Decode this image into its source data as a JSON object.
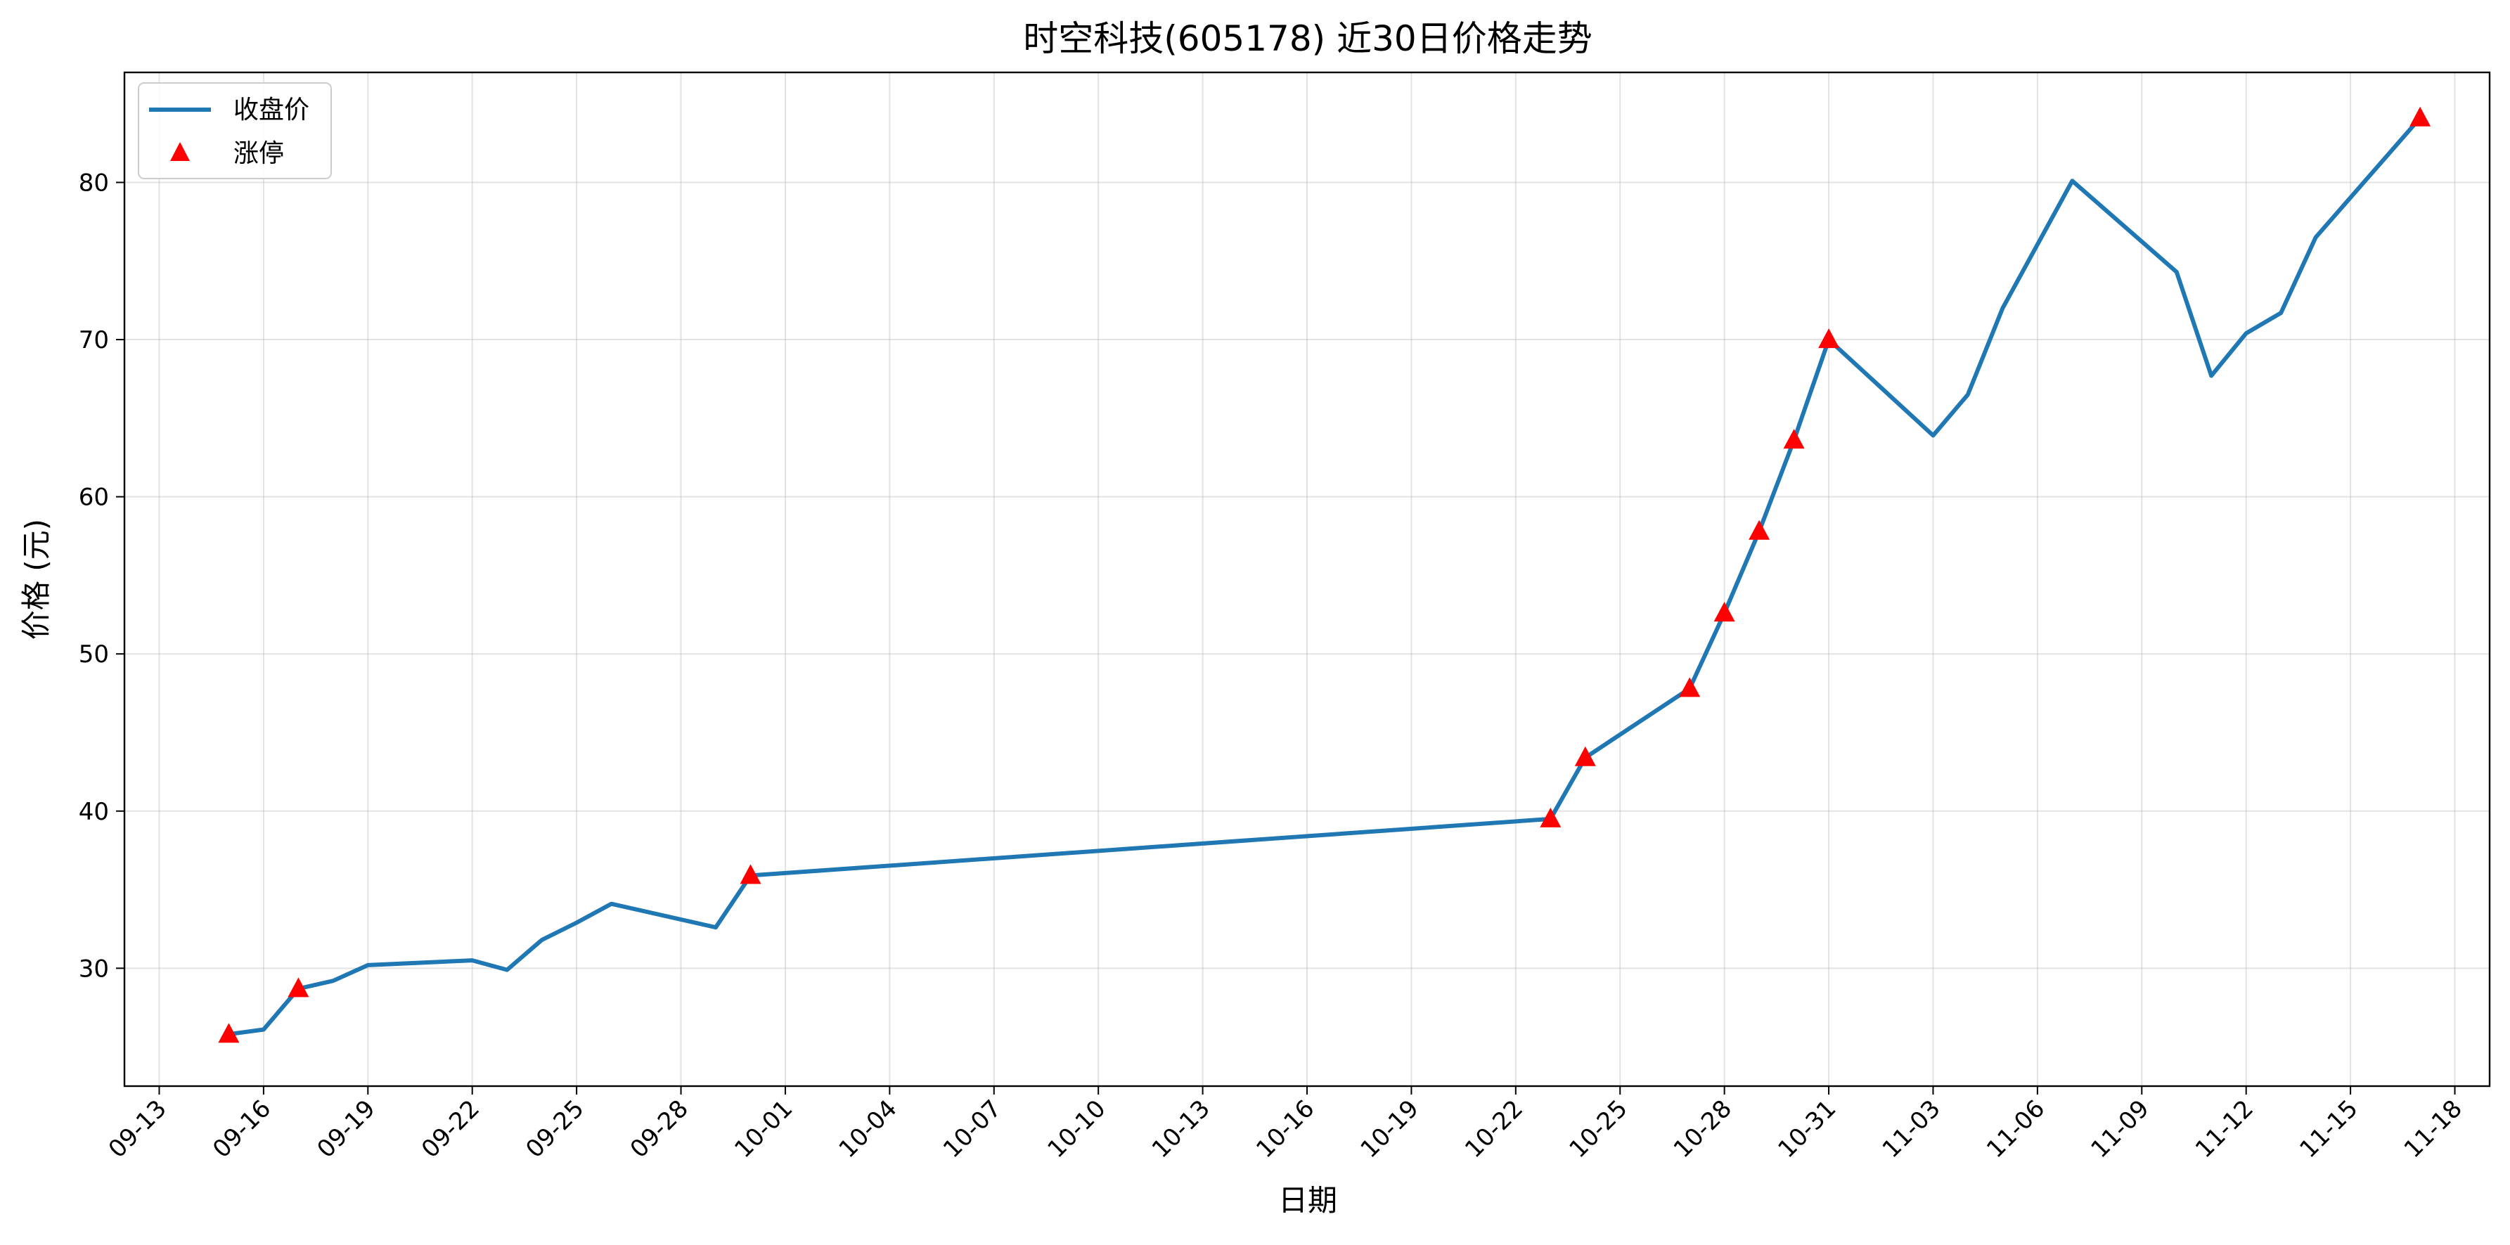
{
  "chart_data": {
    "type": "line",
    "title": "时空科技(605178) 近30日价格走势",
    "xlabel": "日期",
    "ylabel": "价格 (元)",
    "x_axis": {
      "type": "date",
      "range": [
        "2024-09-12",
        "2024-11-19"
      ],
      "ticks": [
        "2024-09-13",
        "2024-09-16",
        "2024-09-19",
        "2024-09-22",
        "2024-09-25",
        "2024-09-28",
        "2024-10-01",
        "2024-10-04",
        "2024-10-07",
        "2024-10-10",
        "2024-10-13",
        "2024-10-16",
        "2024-10-19",
        "2024-10-22",
        "2024-10-25",
        "2024-10-28",
        "2024-10-31",
        "2024-11-03",
        "2024-11-06",
        "2024-11-09",
        "2024-11-12",
        "2024-11-15",
        "2024-11-18"
      ],
      "tick_labels": [
        "09-13",
        "09-16",
        "09-19",
        "09-22",
        "09-25",
        "09-28",
        "10-01",
        "10-04",
        "10-07",
        "10-10",
        "10-13",
        "10-16",
        "10-19",
        "10-22",
        "10-25",
        "10-28",
        "10-31",
        "11-03",
        "11-06",
        "11-09",
        "11-12",
        "11-15",
        "11-18"
      ]
    },
    "y_axis": {
      "range": [
        22.5,
        87
      ],
      "ticks": [
        30,
        40,
        50,
        60,
        70,
        80
      ],
      "tick_labels": [
        "30",
        "40",
        "50",
        "60",
        "70",
        "80"
      ]
    },
    "grid": true,
    "legend": {
      "placement": "top-left",
      "entries": [
        {
          "label": "收盘价",
          "marker": "line",
          "color": "#1f77b4"
        },
        {
          "label": "涨停",
          "marker": "triangle",
          "color": "#ff0000"
        }
      ]
    },
    "series": [
      {
        "name": "收盘价",
        "kind": "line",
        "color": "#1f77b4",
        "x": [
          "2024-09-15",
          "2024-09-16",
          "2024-09-17",
          "2024-09-18",
          "2024-09-19",
          "2024-09-22",
          "2024-09-23",
          "2024-09-24",
          "2024-09-25",
          "2024-09-26",
          "2024-09-29",
          "2024-09-30",
          "2024-10-23",
          "2024-10-24",
          "2024-10-27",
          "2024-10-28",
          "2024-10-29",
          "2024-10-30",
          "2024-10-31",
          "2024-11-03",
          "2024-11-04",
          "2024-11-05",
          "2024-11-07",
          "2024-11-10",
          "2024-11-11",
          "2024-11-12",
          "2024-11-13",
          "2024-11-14",
          "2024-11-17"
        ],
        "y": [
          25.8,
          26.1,
          28.7,
          29.2,
          30.2,
          30.5,
          29.9,
          31.8,
          32.9,
          34.1,
          32.6,
          35.9,
          39.5,
          43.4,
          47.8,
          52.6,
          57.8,
          63.6,
          70.0,
          63.9,
          66.5,
          72.0,
          80.1,
          74.3,
          67.7,
          70.4,
          71.7,
          76.5,
          84.1
        ]
      },
      {
        "name": "涨停",
        "kind": "scatter",
        "marker": "triangle",
        "color": "#ff0000",
        "x": [
          "2024-09-15",
          "2024-09-17",
          "2024-09-30",
          "2024-10-23",
          "2024-10-24",
          "2024-10-27",
          "2024-10-28",
          "2024-10-29",
          "2024-10-30",
          "2024-10-31",
          "2024-11-17"
        ],
        "y": [
          25.8,
          28.7,
          35.9,
          39.5,
          43.4,
          47.8,
          52.6,
          57.8,
          63.6,
          70.0,
          84.1
        ]
      }
    ]
  }
}
